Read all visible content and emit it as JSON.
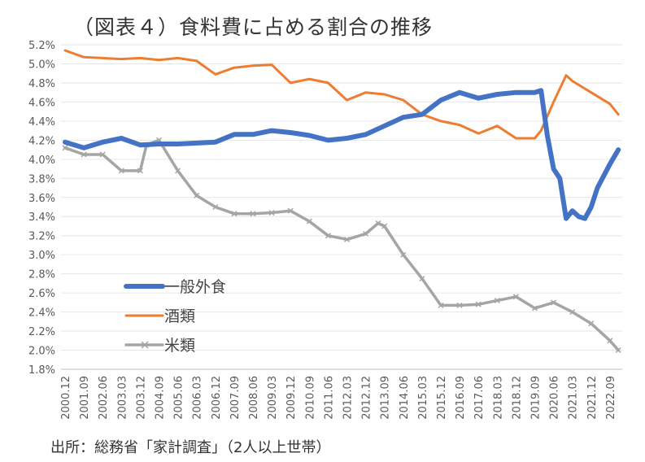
{
  "title": "（図表４）食料費に占める割合の推移",
  "source": "出所：総務省「家計調査」（2人以上世帯）",
  "chart_data": {
    "type": "line",
    "title": "（図表４）食料費に占める割合の推移",
    "ylim": [
      1.8,
      5.2
    ],
    "y_ticks": [
      "5.2%",
      "5.0%",
      "4.8%",
      "4.6%",
      "4.4%",
      "4.2%",
      "4.0%",
      "3.8%",
      "3.6%",
      "3.4%",
      "3.2%",
      "3.0%",
      "2.8%",
      "2.6%",
      "2.4%",
      "2.2%",
      "2.0%",
      "1.8%"
    ],
    "x_ticks": [
      "2000.12",
      "2001.09",
      "2002.06",
      "2003.03",
      "2003.12",
      "2004.09",
      "2005.06",
      "2006.03",
      "2006.12",
      "2007.09",
      "2008.06",
      "2009.03",
      "2009.12",
      "2010.09",
      "2011.06",
      "2012.03",
      "2012.12",
      "2013.09",
      "2014.06",
      "2015.03",
      "2015.12",
      "2016.09",
      "2017.06",
      "2018.03",
      "2018.12",
      "2019.09",
      "2020.06",
      "2021.03",
      "2021.12",
      "2022.09"
    ],
    "grid": "horizontal",
    "legend": "left-middle",
    "series": [
      {
        "name": "一般外食",
        "color": "#4472C4",
        "points": [
          [
            "2000.12",
            4.18
          ],
          [
            "2001.09",
            4.12
          ],
          [
            "2002.06",
            4.18
          ],
          [
            "2003.03",
            4.22
          ],
          [
            "2003.12",
            4.15
          ],
          [
            "2004.09",
            4.16
          ],
          [
            "2005.06",
            4.16
          ],
          [
            "2006.03",
            4.17
          ],
          [
            "2006.12",
            4.18
          ],
          [
            "2007.09",
            4.26
          ],
          [
            "2008.06",
            4.26
          ],
          [
            "2009.03",
            4.3
          ],
          [
            "2009.12",
            4.28
          ],
          [
            "2010.09",
            4.25
          ],
          [
            "2011.06",
            4.2
          ],
          [
            "2012.03",
            4.22
          ],
          [
            "2012.12",
            4.26
          ],
          [
            "2013.09",
            4.35
          ],
          [
            "2014.06",
            4.44
          ],
          [
            "2015.03",
            4.47
          ],
          [
            "2015.12",
            4.62
          ],
          [
            "2016.09",
            4.7
          ],
          [
            "2017.06",
            4.64
          ],
          [
            "2018.03",
            4.68
          ],
          [
            "2018.12",
            4.7
          ],
          [
            "2019.09",
            4.7
          ],
          [
            "2019.12",
            4.72
          ],
          [
            "2020.03",
            4.25
          ],
          [
            "2020.06",
            3.9
          ],
          [
            "2020.09",
            3.8
          ],
          [
            "2020.12",
            3.38
          ],
          [
            "2021.03",
            3.46
          ],
          [
            "2021.06",
            3.4
          ],
          [
            "2021.09",
            3.38
          ],
          [
            "2021.12",
            3.5
          ],
          [
            "2022.03",
            3.7
          ],
          [
            "2022.09",
            3.95
          ],
          [
            "2023.01",
            4.1
          ]
        ]
      },
      {
        "name": "酒類",
        "color": "#ED7D31",
        "points": [
          [
            "2000.12",
            5.14
          ],
          [
            "2001.09",
            5.07
          ],
          [
            "2002.06",
            5.06
          ],
          [
            "2003.03",
            5.05
          ],
          [
            "2003.12",
            5.06
          ],
          [
            "2004.09",
            5.04
          ],
          [
            "2005.06",
            5.06
          ],
          [
            "2006.03",
            5.03
          ],
          [
            "2006.12",
            4.89
          ],
          [
            "2007.09",
            4.96
          ],
          [
            "2008.06",
            4.98
          ],
          [
            "2009.03",
            4.99
          ],
          [
            "2009.12",
            4.8
          ],
          [
            "2010.09",
            4.84
          ],
          [
            "2011.06",
            4.8
          ],
          [
            "2012.03",
            4.62
          ],
          [
            "2012.12",
            4.7
          ],
          [
            "2013.09",
            4.68
          ],
          [
            "2014.06",
            4.62
          ],
          [
            "2015.03",
            4.47
          ],
          [
            "2015.12",
            4.4
          ],
          [
            "2016.09",
            4.36
          ],
          [
            "2017.06",
            4.27
          ],
          [
            "2018.03",
            4.35
          ],
          [
            "2018.12",
            4.22
          ],
          [
            "2019.09",
            4.22
          ],
          [
            "2019.12",
            4.3
          ],
          [
            "2020.06",
            4.6
          ],
          [
            "2020.12",
            4.88
          ],
          [
            "2021.03",
            4.82
          ],
          [
            "2021.12",
            4.7
          ],
          [
            "2022.09",
            4.58
          ],
          [
            "2023.01",
            4.47
          ]
        ]
      },
      {
        "name": "米類",
        "color": "#A5A5A5",
        "points": [
          [
            "2000.12",
            4.12
          ],
          [
            "2001.09",
            4.05
          ],
          [
            "2002.06",
            4.05
          ],
          [
            "2003.03",
            3.88
          ],
          [
            "2003.12",
            3.88
          ],
          [
            "2004.03",
            4.15
          ],
          [
            "2004.09",
            4.2
          ],
          [
            "2005.06",
            3.88
          ],
          [
            "2006.03",
            3.62
          ],
          [
            "2006.12",
            3.5
          ],
          [
            "2007.09",
            3.43
          ],
          [
            "2008.06",
            3.43
          ],
          [
            "2009.03",
            3.44
          ],
          [
            "2009.12",
            3.46
          ],
          [
            "2010.09",
            3.35
          ],
          [
            "2011.06",
            3.2
          ],
          [
            "2012.03",
            3.16
          ],
          [
            "2012.12",
            3.22
          ],
          [
            "2013.06",
            3.33
          ],
          [
            "2013.09",
            3.3
          ],
          [
            "2014.06",
            3.0
          ],
          [
            "2015.03",
            2.75
          ],
          [
            "2015.12",
            2.47
          ],
          [
            "2016.09",
            2.47
          ],
          [
            "2017.06",
            2.48
          ],
          [
            "2018.03",
            2.52
          ],
          [
            "2018.12",
            2.56
          ],
          [
            "2019.09",
            2.44
          ],
          [
            "2020.06",
            2.5
          ],
          [
            "2021.03",
            2.4
          ],
          [
            "2021.12",
            2.28
          ],
          [
            "2022.09",
            2.1
          ],
          [
            "2023.01",
            2.0
          ]
        ]
      }
    ]
  }
}
